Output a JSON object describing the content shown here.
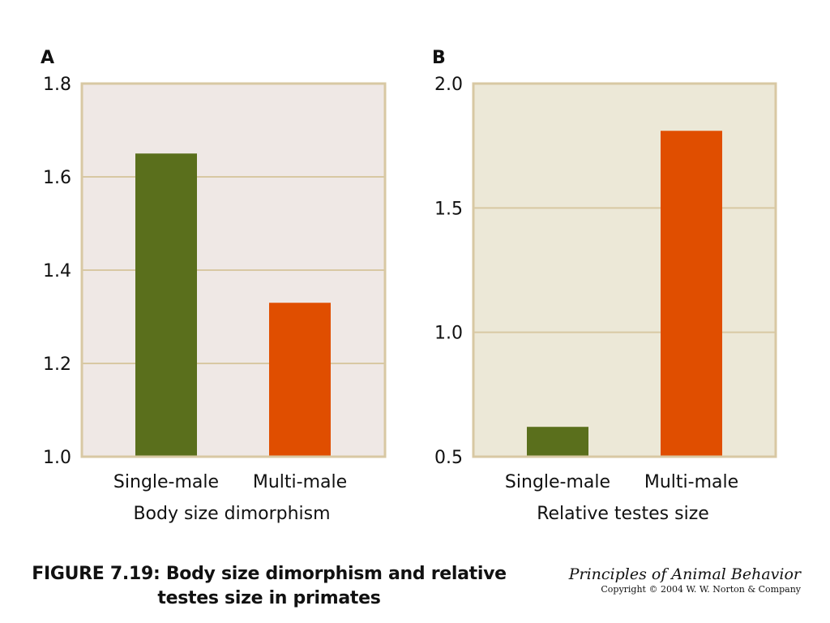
{
  "chart_data": [
    {
      "type": "bar",
      "panel_label": "A",
      "categories": [
        "Single-male",
        "Multi-male"
      ],
      "values": [
        1.65,
        1.33
      ],
      "xlabel": "Body size dimorphism",
      "ylabel": "",
      "ylim": [
        1.0,
        1.8
      ],
      "yticks": [
        1.0,
        1.2,
        1.4,
        1.6,
        1.8
      ],
      "ytick_labels": [
        "1.0",
        "1.2",
        "1.4",
        "1.6",
        "1.8"
      ],
      "bar_colors": [
        "#5a6f1c",
        "#e04e00"
      ],
      "background_color": "#efe8e5",
      "grid": true
    },
    {
      "type": "bar",
      "panel_label": "B",
      "categories": [
        "Single-male",
        "Multi-male"
      ],
      "values": [
        0.62,
        1.81
      ],
      "xlabel": "Relative testes size",
      "ylabel": "",
      "ylim": [
        0.5,
        2.0
      ],
      "yticks": [
        0.5,
        1.0,
        1.5,
        2.0
      ],
      "ytick_labels": [
        "0.5",
        "1.0",
        "1.5",
        "2.0"
      ],
      "bar_colors": [
        "#5a6f1c",
        "#e04e00"
      ],
      "background_color": "#ece8d7",
      "grid": true
    }
  ],
  "caption": {
    "line1": "FIGURE 7.19: Body size dimorphism and relative",
    "line2": "testes size in primates"
  },
  "book": {
    "title": "Principles of Animal Behavior",
    "copyright": "Copyright © 2004 W. W. Norton & Company"
  },
  "colors": {
    "frame": "#d8c8a3",
    "gridline": "#d8c8a3"
  }
}
